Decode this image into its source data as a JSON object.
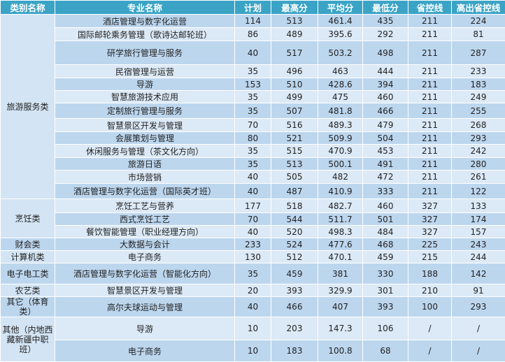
{
  "colors": {
    "header": "#3ba4c6",
    "row_dark": "#bcd6ee",
    "row_light": "#dce9f6"
  },
  "headers": [
    "类别名称",
    "专业名称",
    "计划",
    "最高分",
    "平均分",
    "最低分",
    "省控线",
    "高出省控线"
  ],
  "groups": [
    {
      "category": "旅游服务类",
      "rows": [
        [
          "酒店管理与数字化运营",
          "114",
          "513",
          "461.4",
          "435",
          "211",
          "224"
        ],
        [
          "国际邮轮乘务管理（歌诗达邮轮班）",
          "86",
          "489",
          "395.6",
          "292",
          "211",
          "81"
        ],
        [
          "研学旅行管理与服务",
          "40",
          "517",
          "503.2",
          "498",
          "211",
          "287"
        ],
        [
          "民宿管理与运营",
          "35",
          "496",
          "463",
          "444",
          "211",
          "233"
        ],
        [
          "导游",
          "153",
          "510",
          "428.6",
          "394",
          "211",
          "183"
        ],
        [
          "智慧旅游技术应用",
          "35",
          "499",
          "475",
          "460",
          "211",
          "249"
        ],
        [
          "定制旅行管理与服务",
          "35",
          "507",
          "481.8",
          "466",
          "211",
          "255"
        ],
        [
          "智慧景区开发与管理",
          "70",
          "516",
          "489.3",
          "479",
          "211",
          "268"
        ],
        [
          "会展策划与管理",
          "80",
          "521",
          "509.9",
          "504",
          "211",
          "293"
        ],
        [
          "休闲服务与管理（茶文化方向）",
          "35",
          "515",
          "470.9",
          "453",
          "211",
          "242"
        ],
        [
          "旅游日语",
          "35",
          "513",
          "500.1",
          "491",
          "211",
          "280"
        ],
        [
          "市场营销",
          "40",
          "505",
          "482",
          "472",
          "211",
          "261"
        ],
        [
          "酒店管理与数字化运营（国际英才班）",
          "40",
          "487",
          "410.9",
          "333",
          "211",
          "122"
        ]
      ]
    },
    {
      "category": "烹饪类",
      "rows": [
        [
          "烹饪工艺与营养",
          "177",
          "518",
          "482.7",
          "460",
          "327",
          "133"
        ],
        [
          "西式烹饪工艺",
          "70",
          "544",
          "511.7",
          "501",
          "327",
          "174"
        ],
        [
          "餐饮智能管理（职业经理方向）",
          "40",
          "520",
          "498.3",
          "484",
          "327",
          "157"
        ]
      ]
    },
    {
      "category": "财会类",
      "rows": [
        [
          "大数据与会计",
          "233",
          "524",
          "477.6",
          "468",
          "225",
          "243"
        ]
      ]
    },
    {
      "category": "计算机类",
      "rows": [
        [
          "电子商务",
          "130",
          "512",
          "470.1",
          "459",
          "215",
          "244"
        ]
      ]
    },
    {
      "category": "电子电工类",
      "rows": [
        [
          "酒店管理与数字化运营（智能化方向）",
          "35",
          "459",
          "381",
          "330",
          "188",
          "142"
        ]
      ]
    },
    {
      "category": "农艺类",
      "rows": [
        [
          "智慧景区开发与管理",
          "20",
          "393",
          "329.9",
          "301",
          "210",
          "91"
        ]
      ]
    },
    {
      "category": "其它（体育类）",
      "rows": [
        [
          "高尔夫球运动与管理",
          "40",
          "466",
          "407",
          "393",
          "100",
          "293"
        ]
      ]
    },
    {
      "category": "其他（内地西藏新疆中职班）",
      "rows": [
        [
          "导游",
          "10",
          "203",
          "147.3",
          "106",
          "/",
          "/"
        ],
        [
          "电子商务",
          "10",
          "183",
          "100.8",
          "68",
          "/",
          "/"
        ]
      ]
    }
  ]
}
